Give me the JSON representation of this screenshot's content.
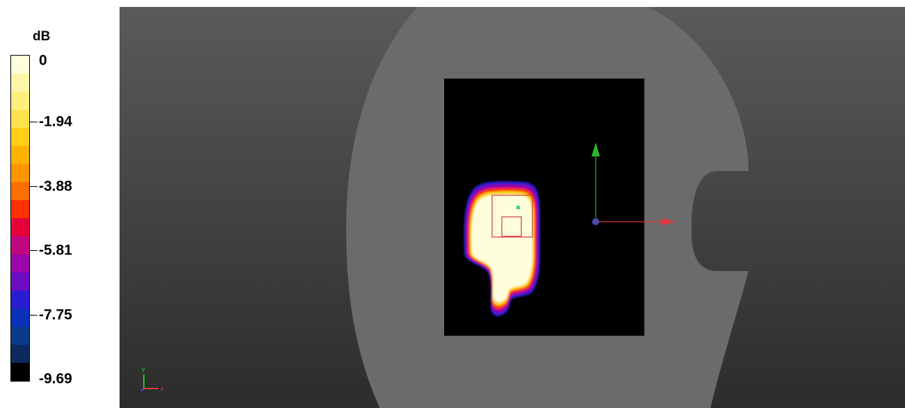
{
  "legend": {
    "unit": "dB",
    "ticks": [
      {
        "label": "0",
        "value": 0
      },
      {
        "label": "-1.94",
        "value": -1.94
      },
      {
        "label": "-3.88",
        "value": -3.88
      },
      {
        "label": "-5.81",
        "value": -5.81
      },
      {
        "label": "-7.75",
        "value": -7.75
      },
      {
        "label": "-9.69",
        "value": -9.69
      }
    ],
    "colors": [
      "#fffedc",
      "#fff7a8",
      "#fff07c",
      "#ffe34a",
      "#ffcf1a",
      "#ffb300",
      "#ff9600",
      "#ff6f00",
      "#ff3000",
      "#e5003a",
      "#c0077f",
      "#9a05a8",
      "#6b0cc0",
      "#2a1cd0",
      "#0a31b8",
      "#0a3a8c",
      "#0c2a60",
      "#000000"
    ]
  },
  "scene": {
    "background_top": "#5a5a5a",
    "background_bottom": "#2c2c2c",
    "phantom_color": "#6b6b6b",
    "plane_color": "#000000",
    "x_axis_color": "#e23a3a",
    "y_axis_color": "#27b727",
    "origin_color": "#4b4ba8",
    "marker_color": "#2ce07a"
  },
  "axis_triad": {
    "x_label": "x",
    "y_label": "y",
    "x_color": "#e23a3a",
    "y_color": "#2cc22c",
    "z_color": "#3d55ff"
  }
}
